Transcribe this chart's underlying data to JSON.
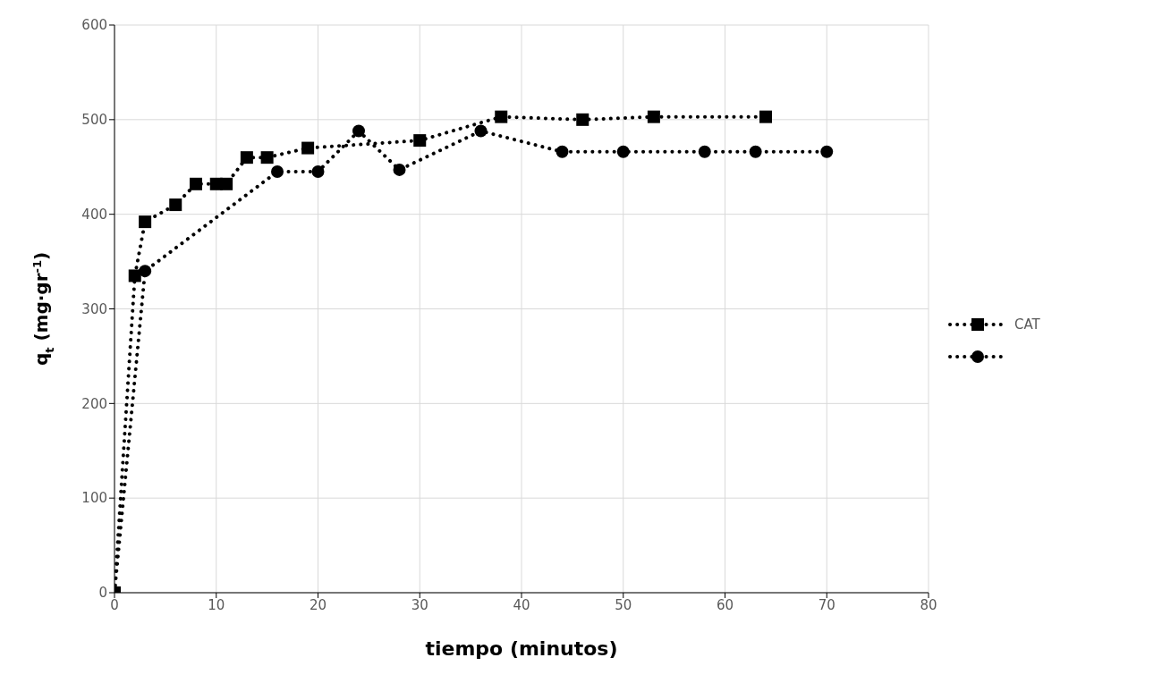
{
  "chart_data": {
    "type": "line",
    "xlabel": "tiempo (minutos)",
    "ylabel": "q$_{t}$ (mg·gr$^{-1}$)",
    "xlim": [
      0,
      80
    ],
    "xticks": [
      0,
      10,
      20,
      30,
      40,
      50,
      60,
      70,
      80
    ],
    "ylim": [
      0,
      600
    ],
    "yticks": [
      0,
      100,
      200,
      300,
      400,
      500,
      600
    ],
    "grid": true,
    "legend": "right",
    "line_style": "dotted",
    "series": [
      {
        "name": "CAT",
        "color": "#000000",
        "marker": "square",
        "x": [
          0,
          2,
          3,
          6,
          8,
          10,
          11,
          13,
          15,
          19,
          30,
          38,
          46,
          53,
          64
        ],
        "values": [
          0,
          335,
          392,
          410,
          432,
          432,
          432,
          460,
          460,
          470,
          478,
          503,
          500,
          503,
          503
        ]
      },
      {
        "color": "#000000",
        "marker": "circle",
        "x": [
          0,
          3,
          16,
          20,
          24,
          28,
          36,
          44,
          50,
          58,
          63,
          70
        ],
        "values": [
          0,
          340,
          445,
          445,
          488,
          447,
          488,
          466,
          466,
          466,
          466,
          466
        ]
      }
    ]
  }
}
